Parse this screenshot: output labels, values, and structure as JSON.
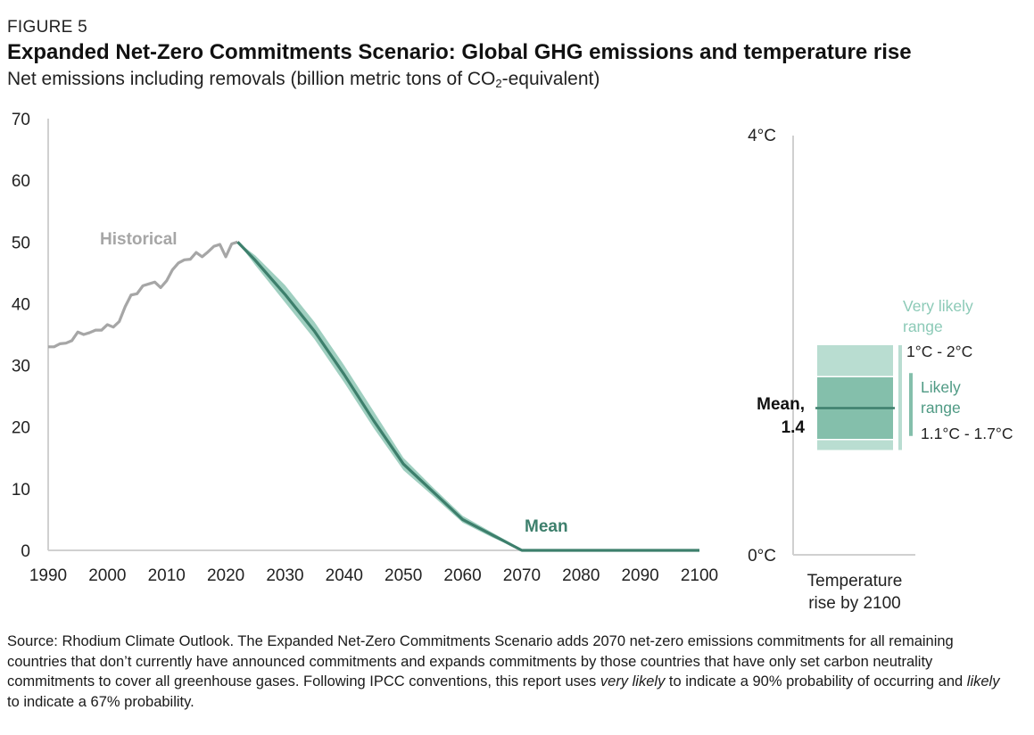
{
  "figure_label": "FIGURE 5",
  "title": "Expanded Net-Zero Commitments Scenario: Global GHG emissions and temperature rise",
  "subtitle": {
    "before": "Net emissions including removals (billion metric tons of CO",
    "sub": "2",
    "after": "-equivalent)"
  },
  "colors": {
    "historical": "#a6a6a6",
    "mean": "#3d7f6c",
    "band": "#8ec7b5",
    "very_likely_box": "#b9ddd1",
    "likely_box": "#84bfab",
    "axis": "#d0d0d0",
    "very_likely_label": "#8ccab7",
    "likely_label": "#4f9a84"
  },
  "chart_data": [
    {
      "type": "line",
      "xlim": [
        1990,
        2100
      ],
      "ylim": [
        0,
        70
      ],
      "x_ticks": [
        "1990",
        "2000",
        "2010",
        "2020",
        "2030",
        "2040",
        "2050",
        "2060",
        "2070",
        "2080",
        "2090",
        "2100"
      ],
      "y_ticks": [
        "0",
        "10",
        "20",
        "30",
        "40",
        "50",
        "60",
        "70"
      ],
      "series": [
        {
          "name": "Historical",
          "x": [
            1990,
            1991,
            1992,
            1993,
            1994,
            1995,
            1996,
            1997,
            1998,
            1999,
            2000,
            2001,
            2002,
            2003,
            2004,
            2005,
            2006,
            2007,
            2008,
            2009,
            2010,
            2011,
            2012,
            2013,
            2014,
            2015,
            2016,
            2017,
            2018,
            2019,
            2020,
            2021,
            2022
          ],
          "values": [
            33,
            33,
            33.5,
            33.6,
            34,
            35.4,
            35,
            35.3,
            35.7,
            35.7,
            36.6,
            36.2,
            37.1,
            39.5,
            41.4,
            41.6,
            42.9,
            43.2,
            43.5,
            42.6,
            43.7,
            45.5,
            46.6,
            47.1,
            47.2,
            48.3,
            47.6,
            48.4,
            49.3,
            49.6,
            47.6,
            49.7,
            50
          ]
        },
        {
          "name": "Mean",
          "x": [
            2022,
            2025,
            2030,
            2035,
            2040,
            2045,
            2050,
            2055,
            2060,
            2065,
            2070,
            2080,
            2090,
            2100
          ],
          "values": [
            50,
            47,
            41.5,
            35.5,
            28.5,
            21,
            14,
            9.5,
            5,
            2.5,
            0,
            0,
            0,
            0
          ]
        }
      ],
      "band": {
        "x": [
          2022,
          2025,
          2030,
          2035,
          2040,
          2045,
          2050,
          2055,
          2060,
          2065,
          2070
        ],
        "upper": [
          50,
          47.8,
          43,
          37,
          30,
          22.5,
          15,
          10.2,
          5.6,
          2.9,
          0.2
        ],
        "lower": [
          50,
          46.2,
          40.2,
          34.2,
          27.2,
          19.8,
          13,
          8.8,
          4.5,
          2.1,
          0
        ]
      }
    },
    {
      "type": "bar",
      "ylim": [
        0,
        4
      ],
      "y_ticks": [
        "0°C",
        "4°C"
      ],
      "xlabel_line1": "Temperature",
      "xlabel_line2": "rise by 2100",
      "mean": 1.4,
      "mean_label_line1": "Mean,",
      "mean_label_line2": "1.4",
      "very_likely": {
        "low": 1.0,
        "high": 2.0,
        "label_line1": "Very likely",
        "label_line2": "range",
        "value_label": "1°C - 2°C"
      },
      "likely": {
        "low": 1.1,
        "high": 1.7,
        "label_line1": "Likely",
        "label_line2": "range",
        "value_label": "1.1°C - 1.7°C"
      }
    }
  ],
  "source_parts": [
    {
      "text": "Source: Rhodium Climate Outlook. The Expanded Net-Zero Commitments Scenario adds 2070 net-zero emissions commitments for all remaining countries that don’t currently have announced commitments and expands commitments by those countries that have only set carbon neutrality commitments to cover all greenhouse gases. Following IPCC conventions, this report uses ",
      "italic": false
    },
    {
      "text": "very likely",
      "italic": true
    },
    {
      "text": " to indicate a 90% probability of occurring and ",
      "italic": false
    },
    {
      "text": "likely",
      "italic": true
    },
    {
      "text": " to indicate a 67% probability.",
      "italic": false
    }
  ]
}
